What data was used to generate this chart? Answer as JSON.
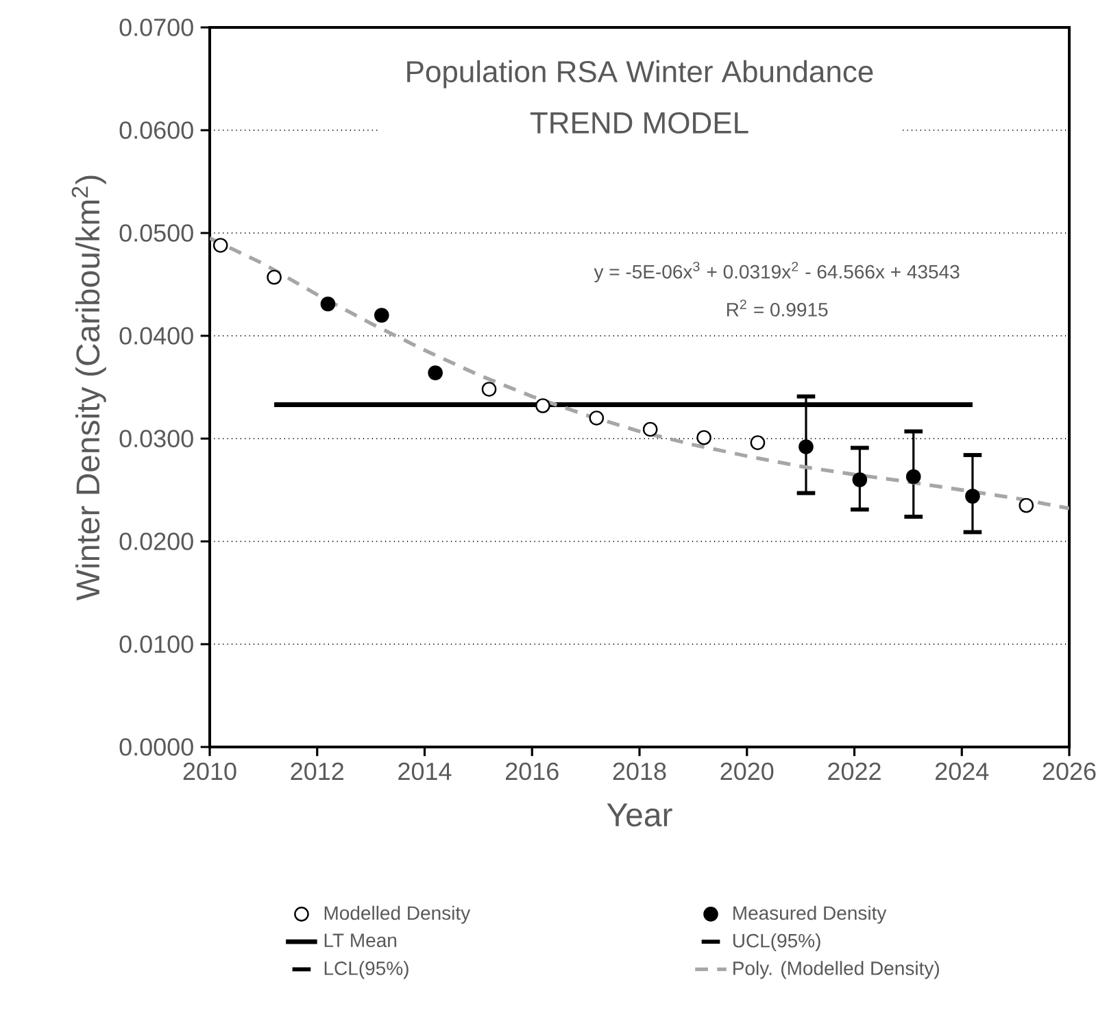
{
  "chart_data": {
    "type": "scatter",
    "title": "Population RSA Winter Abundance",
    "subtitle": "TREND MODEL",
    "xlabel": "Year",
    "ylabel": "Winter Density (Caribou/km$^{2}$)",
    "annotations": [
      "y = -5E-06x$^{3}$ + 0.0319x$^{2}$ - 64.566x + 43543",
      "R$^{2}$ = 0.9915"
    ],
    "xlim": [
      2010,
      2026
    ],
    "xticks": [
      2010,
      2012,
      2014,
      2016,
      2018,
      2020,
      2022,
      2024,
      2026
    ],
    "ylim": [
      0,
      0.07
    ],
    "yticks": [
      {
        "value": 0,
        "label": "0.0000"
      },
      {
        "value": 0.01,
        "label": "0.0100"
      },
      {
        "value": 0.02,
        "label": "0.0200"
      },
      {
        "value": 0.03,
        "label": "0.0300"
      },
      {
        "value": 0.04,
        "label": "0.0400"
      },
      {
        "value": 0.05,
        "label": "0.0500"
      },
      {
        "value": 0.06,
        "label": "0.0600"
      },
      {
        "value": 0.07,
        "label": "0.0700"
      }
    ],
    "grid": "y",
    "legend": "bottom",
    "series": [
      {
        "name": "Modelled Density",
        "marker": "circle",
        "color": "#ffffff",
        "x": [
          2010.2,
          2011.2,
          2015.2,
          2016.2,
          2017.2,
          2018.2,
          2019.2,
          2020.2,
          2025.2
        ],
        "values": [
          0.0488,
          0.0457,
          0.0348,
          0.0332,
          0.032,
          0.0309,
          0.0301,
          0.0296,
          0.0235
        ]
      },
      {
        "name": "Measured Density",
        "marker": "circle",
        "color": "#000000",
        "x": [
          2012.2,
          2013.2,
          2014.2,
          2021.1,
          2022.1,
          2023.1,
          2024.2
        ],
        "values": [
          0.0431,
          0.042,
          0.0364,
          0.0292,
          0.026,
          0.0263,
          0.0244
        ],
        "errors": [
          null,
          null,
          null,
          [
            0.0247,
            0.0341
          ],
          [
            0.0231,
            0.0291
          ],
          [
            0.0224,
            0.0307
          ],
          [
            0.0209,
            0.0284
          ]
        ]
      },
      {
        "name": "LT Mean",
        "type": "line",
        "marker": "none",
        "line_style": "solid",
        "color": "#000000",
        "x": [
          2011.2,
          2024.2
        ],
        "values": [
          0.0333,
          0.0333
        ]
      },
      {
        "name": "UCL(95%)",
        "color": "#000000"
      },
      {
        "name": "LCL(95%)",
        "color": "#000000"
      },
      {
        "name": "Poly. (Modelled Density)",
        "type": "line",
        "marker": "none",
        "line_style": "dashed",
        "color": "#a6a6a6",
        "x": [
          2010,
          2011,
          2012,
          2013,
          2014,
          2015,
          2016,
          2017,
          2018,
          2019,
          2020,
          2021,
          2022,
          2023,
          2024,
          2025,
          2026
        ],
        "values": [
          0.0495,
          0.047,
          0.044,
          0.0412,
          0.0386,
          0.0362,
          0.0341,
          0.0323,
          0.0307,
          0.0294,
          0.0283,
          0.0273,
          0.0265,
          0.0258,
          0.025,
          0.0242,
          0.0232
        ]
      }
    ]
  }
}
